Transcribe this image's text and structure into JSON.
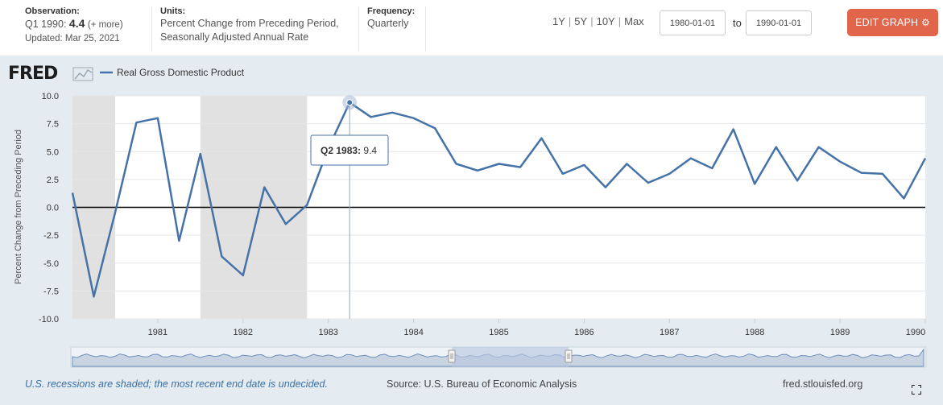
{
  "header": {
    "observation_label": "Observation:",
    "observation_period": "Q1 1990:",
    "observation_value": "4.4",
    "observation_more": "(+ more)",
    "updated": "Updated: Mar 25, 2021",
    "units_label": "Units:",
    "units_line1": "Percent Change from Preceding Period,",
    "units_line2": "Seasonally Adjusted Annual Rate",
    "frequency_label": "Frequency:",
    "frequency_value": "Quarterly"
  },
  "range_buttons": [
    "1Y",
    "5Y",
    "10Y",
    "Max"
  ],
  "date_start": "1980-01-01",
  "date_to": "to",
  "date_end": "1990-01-01",
  "edit_label": "EDIT GRAPH",
  "brand": "FRED",
  "footer": {
    "note": "U.S. recessions are shaded; the most recent end date is undecided.",
    "source": "Source: U.S. Bureau of Economic Analysis",
    "site": "fred.stlouisfed.org"
  },
  "colors": {
    "line": "#4572a7",
    "recession": "#e1e1e1",
    "accent": "#e0654a",
    "navigator_mask": "#c4cfe4"
  },
  "chart_data": {
    "type": "line",
    "title": "Real Gross Domestic Product",
    "ylabel": "Percent Change from Preceding Period",
    "xlabel": "",
    "ylim": [
      -10,
      10
    ],
    "yticks": [
      "10.0",
      "7.5",
      "5.0",
      "2.5",
      "0.0",
      "-2.5",
      "-5.0",
      "-7.5",
      "-10.0"
    ],
    "xticks": [
      "1981",
      "1982",
      "1983",
      "1984",
      "1985",
      "1986",
      "1987",
      "1988",
      "1989",
      "1990"
    ],
    "x_start": 1980.0,
    "x_end": 1990.0,
    "recessions": [
      [
        1980.0,
        1980.5
      ],
      [
        1981.5,
        1982.75
      ]
    ],
    "series": [
      {
        "name": "Real Gross Domestic Product",
        "x": [
          "1980 Q1",
          "1980 Q2",
          "1980 Q3",
          "1980 Q4",
          "1981 Q1",
          "1981 Q2",
          "1981 Q3",
          "1981 Q4",
          "1982 Q1",
          "1982 Q2",
          "1982 Q3",
          "1982 Q4",
          "1983 Q1",
          "1983 Q2",
          "1983 Q3",
          "1983 Q4",
          "1984 Q1",
          "1984 Q2",
          "1984 Q3",
          "1984 Q4",
          "1985 Q1",
          "1985 Q2",
          "1985 Q3",
          "1985 Q4",
          "1986 Q1",
          "1986 Q2",
          "1986 Q3",
          "1986 Q4",
          "1987 Q1",
          "1987 Q2",
          "1987 Q3",
          "1987 Q4",
          "1988 Q1",
          "1988 Q2",
          "1988 Q3",
          "1988 Q4",
          "1989 Q1",
          "1989 Q2",
          "1989 Q3",
          "1989 Q4",
          "1990 Q1"
        ],
        "values": [
          1.3,
          -8.0,
          -0.5,
          7.6,
          8.0,
          -3.0,
          4.8,
          -4.4,
          -6.1,
          1.8,
          -1.5,
          0.2,
          5.3,
          9.4,
          8.1,
          8.5,
          8.0,
          7.1,
          3.9,
          3.3,
          3.9,
          3.6,
          6.2,
          3.0,
          3.8,
          1.8,
          3.9,
          2.2,
          3.0,
          4.4,
          3.5,
          7.0,
          2.1,
          5.4,
          2.4,
          5.4,
          4.1,
          3.1,
          3.0,
          0.8,
          4.4
        ]
      }
    ],
    "tooltip": {
      "label": "Q2 1983:",
      "value": "9.4",
      "index": 13
    }
  }
}
